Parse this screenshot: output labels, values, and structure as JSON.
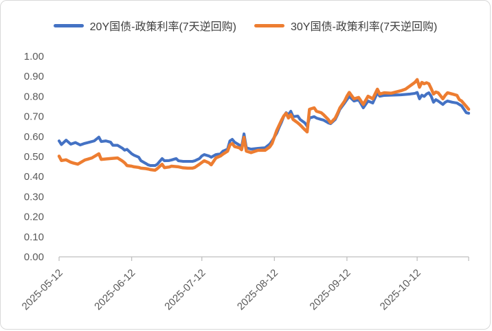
{
  "window": {
    "background": "#FFFFFF",
    "border_color": "#D8D8D8"
  },
  "legend": {
    "items": [
      {
        "label": "20Y国债-政策利率(7天逆回购)",
        "color": "#4472C4",
        "swatch": "line"
      },
      {
        "label": "30Y国债-政策利率(7天逆回购)",
        "color": "#ED7D31",
        "swatch": "line"
      }
    ]
  },
  "chart_data": {
    "type": "line",
    "title": "",
    "xlabel": "",
    "ylabel": "",
    "grid": false,
    "legend_position": "top",
    "axis_color": "#BFBFBF",
    "label_color": "#595959",
    "x_axis": {
      "kind": "date",
      "start_date": "2025-05-12",
      "unit": "days_since_start",
      "tick_labels": [
        "2025-05-12",
        "2025-06-12",
        "2025-07-12",
        "2025-08-12",
        "2025-09-12",
        "2025-10-12"
      ],
      "tick_day_offsets": [
        0,
        31,
        61,
        92,
        123,
        153
      ],
      "max_day_offset": 175,
      "label_rotation_deg": -45
    },
    "y_axis": {
      "min": 0.0,
      "max": 1.0,
      "step": 0.1,
      "tick_labels": [
        "0.00",
        "0.10",
        "0.20",
        "0.30",
        "0.40",
        "0.50",
        "0.60",
        "0.70",
        "0.80",
        "0.90",
        "1.00"
      ]
    },
    "series": [
      {
        "name": "20Y国债-政策利率(7天逆回购)",
        "color": "#4472C4",
        "points": [
          [
            0,
            0.578
          ],
          [
            1,
            0.56
          ],
          [
            3,
            0.582
          ],
          [
            5,
            0.562
          ],
          [
            7,
            0.57
          ],
          [
            9,
            0.558
          ],
          [
            11,
            0.566
          ],
          [
            13,
            0.572
          ],
          [
            15,
            0.578
          ],
          [
            17,
            0.597
          ],
          [
            18,
            0.575
          ],
          [
            20,
            0.578
          ],
          [
            22,
            0.572
          ],
          [
            23,
            0.556
          ],
          [
            25,
            0.556
          ],
          [
            27,
            0.542
          ],
          [
            28,
            0.532
          ],
          [
            29,
            0.536
          ],
          [
            31,
            0.514
          ],
          [
            32,
            0.507
          ],
          [
            34,
            0.497
          ],
          [
            35,
            0.479
          ],
          [
            37,
            0.466
          ],
          [
            38,
            0.459
          ],
          [
            39,
            0.455
          ],
          [
            41,
            0.455
          ],
          [
            42,
            0.462
          ],
          [
            44,
            0.49
          ],
          [
            45,
            0.479
          ],
          [
            47,
            0.48
          ],
          [
            48,
            0.483
          ],
          [
            50,
            0.49
          ],
          [
            51,
            0.479
          ],
          [
            53,
            0.476
          ],
          [
            55,
            0.476
          ],
          [
            57,
            0.476
          ],
          [
            58,
            0.479
          ],
          [
            60,
            0.49
          ],
          [
            61,
            0.503
          ],
          [
            62,
            0.51
          ],
          [
            64,
            0.503
          ],
          [
            65,
            0.497
          ],
          [
            67,
            0.51
          ],
          [
            69,
            0.514
          ],
          [
            70,
            0.527
          ],
          [
            72,
            0.537
          ],
          [
            73,
            0.578
          ],
          [
            74,
            0.586
          ],
          [
            75,
            0.572
          ],
          [
            77,
            0.558
          ],
          [
            78,
            0.548
          ],
          [
            79,
            0.613
          ],
          [
            80,
            0.544
          ],
          [
            82,
            0.537
          ],
          [
            85,
            0.541
          ],
          [
            88,
            0.544
          ],
          [
            90,
            0.562
          ],
          [
            91,
            0.578
          ],
          [
            93,
            0.616
          ],
          [
            94,
            0.645
          ],
          [
            95,
            0.67
          ],
          [
            96,
            0.7
          ],
          [
            97,
            0.719
          ],
          [
            98,
            0.709
          ],
          [
            99,
            0.726
          ],
          [
            100,
            0.699
          ],
          [
            102,
            0.702
          ],
          [
            103,
            0.685
          ],
          [
            105,
            0.668
          ],
          [
            106,
            0.651
          ],
          [
            107,
            0.692
          ],
          [
            109,
            0.699
          ],
          [
            110,
            0.692
          ],
          [
            112,
            0.685
          ],
          [
            113,
            0.682
          ],
          [
            115,
            0.668
          ],
          [
            116,
            0.664
          ],
          [
            118,
            0.685
          ],
          [
            119,
            0.709
          ],
          [
            120,
            0.736
          ],
          [
            122,
            0.767
          ],
          [
            123,
            0.784
          ],
          [
            124,
            0.8
          ],
          [
            126,
            0.777
          ],
          [
            128,
            0.784
          ],
          [
            130,
            0.743
          ],
          [
            132,
            0.777
          ],
          [
            134,
            0.767
          ],
          [
            136,
            0.818
          ],
          [
            137,
            0.801
          ],
          [
            139,
            0.805
          ],
          [
            142,
            0.806
          ],
          [
            146,
            0.808
          ],
          [
            150,
            0.812
          ],
          [
            152,
            0.815
          ],
          [
            153,
            0.82
          ],
          [
            154,
            0.788
          ],
          [
            155,
            0.806
          ],
          [
            156,
            0.8
          ],
          [
            157,
            0.812
          ],
          [
            158,
            0.818
          ],
          [
            159,
            0.801
          ],
          [
            160,
            0.771
          ],
          [
            161,
            0.784
          ],
          [
            162,
            0.777
          ],
          [
            164,
            0.76
          ],
          [
            165,
            0.771
          ],
          [
            166,
            0.777
          ],
          [
            168,
            0.771
          ],
          [
            170,
            0.767
          ],
          [
            171,
            0.76
          ],
          [
            172,
            0.753
          ],
          [
            174,
            0.719
          ],
          [
            175,
            0.716
          ]
        ]
      },
      {
        "name": "30Y国债-政策利率(7天逆回购)",
        "color": "#ED7D31",
        "points": [
          [
            0,
            0.502
          ],
          [
            1,
            0.48
          ],
          [
            3,
            0.484
          ],
          [
            5,
            0.472
          ],
          [
            6,
            0.468
          ],
          [
            8,
            0.462
          ],
          [
            11,
            0.483
          ],
          [
            14,
            0.493
          ],
          [
            17,
            0.514
          ],
          [
            18,
            0.486
          ],
          [
            20,
            0.488
          ],
          [
            22,
            0.49
          ],
          [
            25,
            0.493
          ],
          [
            27,
            0.478
          ],
          [
            28,
            0.469
          ],
          [
            29,
            0.455
          ],
          [
            31,
            0.452
          ],
          [
            32,
            0.449
          ],
          [
            34,
            0.446
          ],
          [
            35,
            0.442
          ],
          [
            37,
            0.44
          ],
          [
            38,
            0.438
          ],
          [
            39,
            0.435
          ],
          [
            41,
            0.432
          ],
          [
            42,
            0.44
          ],
          [
            44,
            0.462
          ],
          [
            45,
            0.445
          ],
          [
            47,
            0.448
          ],
          [
            48,
            0.452
          ],
          [
            50,
            0.45
          ],
          [
            51,
            0.449
          ],
          [
            53,
            0.444
          ],
          [
            55,
            0.442
          ],
          [
            57,
            0.442
          ],
          [
            58,
            0.446
          ],
          [
            60,
            0.462
          ],
          [
            62,
            0.479
          ],
          [
            64,
            0.469
          ],
          [
            65,
            0.459
          ],
          [
            67,
            0.493
          ],
          [
            69,
            0.503
          ],
          [
            70,
            0.512
          ],
          [
            72,
            0.527
          ],
          [
            73,
            0.558
          ],
          [
            74,
            0.565
          ],
          [
            75,
            0.55
          ],
          [
            77,
            0.544
          ],
          [
            78,
            0.534
          ],
          [
            79,
            0.596
          ],
          [
            80,
            0.527
          ],
          [
            82,
            0.52
          ],
          [
            85,
            0.531
          ],
          [
            88,
            0.531
          ],
          [
            90,
            0.548
          ],
          [
            91,
            0.565
          ],
          [
            93,
            0.63
          ],
          [
            94,
            0.655
          ],
          [
            95,
            0.68
          ],
          [
            96,
            0.702
          ],
          [
            97,
            0.716
          ],
          [
            98,
            0.692
          ],
          [
            99,
            0.709
          ],
          [
            100,
            0.685
          ],
          [
            102,
            0.668
          ],
          [
            103,
            0.658
          ],
          [
            105,
            0.634
          ],
          [
            106,
            0.623
          ],
          [
            107,
            0.736
          ],
          [
            109,
            0.743
          ],
          [
            110,
            0.726
          ],
          [
            112,
            0.719
          ],
          [
            113,
            0.709
          ],
          [
            115,
            0.685
          ],
          [
            116,
            0.668
          ],
          [
            118,
            0.692
          ],
          [
            119,
            0.716
          ],
          [
            120,
            0.743
          ],
          [
            122,
            0.777
          ],
          [
            123,
            0.801
          ],
          [
            124,
            0.82
          ],
          [
            126,
            0.788
          ],
          [
            128,
            0.795
          ],
          [
            130,
            0.76
          ],
          [
            132,
            0.801
          ],
          [
            134,
            0.788
          ],
          [
            136,
            0.836
          ],
          [
            137,
            0.812
          ],
          [
            139,
            0.818
          ],
          [
            142,
            0.816
          ],
          [
            146,
            0.828
          ],
          [
            148,
            0.836
          ],
          [
            150,
            0.853
          ],
          [
            152,
            0.87
          ],
          [
            153,
            0.884
          ],
          [
            154,
            0.846
          ],
          [
            155,
            0.87
          ],
          [
            156,
            0.863
          ],
          [
            157,
            0.868
          ],
          [
            158,
            0.863
          ],
          [
            159,
            0.839
          ],
          [
            160,
            0.812
          ],
          [
            161,
            0.822
          ],
          [
            162,
            0.818
          ],
          [
            164,
            0.788
          ],
          [
            165,
            0.805
          ],
          [
            166,
            0.818
          ],
          [
            168,
            0.812
          ],
          [
            170,
            0.805
          ],
          [
            171,
            0.784
          ],
          [
            172,
            0.777
          ],
          [
            174,
            0.75
          ],
          [
            175,
            0.736
          ]
        ]
      }
    ]
  }
}
